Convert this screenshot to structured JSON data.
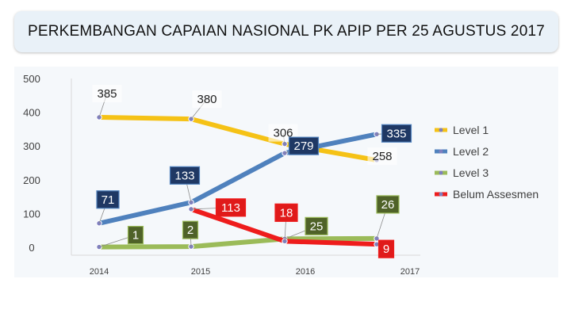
{
  "chart_data": {
    "type": "line",
    "title": "PERKEMBANGAN CAPAIAN NASIONAL PK APIP PER 25 AGUSTUS 2017",
    "x": [
      "2014",
      "2015",
      "2016",
      "2017"
    ],
    "ylim": [
      0,
      500
    ],
    "yticks": [
      0,
      100,
      200,
      300,
      400,
      500
    ],
    "xlabel": "",
    "ylabel": "",
    "grid": false,
    "legend_position": "right",
    "series": [
      {
        "name": "Level 1",
        "color": "#f5c216",
        "values": [
          385,
          380,
          306,
          258
        ],
        "labels": [
          "385",
          "380",
          "306",
          "258"
        ],
        "label_style": "plain"
      },
      {
        "name": "Level 2",
        "color": "#4f81bd",
        "values": [
          71,
          133,
          279,
          335
        ],
        "labels": [
          "71",
          "133",
          "279",
          "335"
        ],
        "label_style": "boxed",
        "label_bg": "#1f3864"
      },
      {
        "name": "Level 3",
        "color": "#9bbb59",
        "values": [
          1,
          2,
          25,
          26
        ],
        "labels": [
          "1",
          "2",
          "25",
          "26"
        ],
        "label_style": "boxed",
        "label_bg": "#4f6228"
      },
      {
        "name": "Belum Assesmen",
        "color": "#ee1c1c",
        "values": [
          null,
          113,
          18,
          9
        ],
        "labels": [
          "",
          "113",
          "18",
          "9"
        ],
        "label_style": "boxed",
        "label_bg": "#e01a1a"
      }
    ]
  }
}
